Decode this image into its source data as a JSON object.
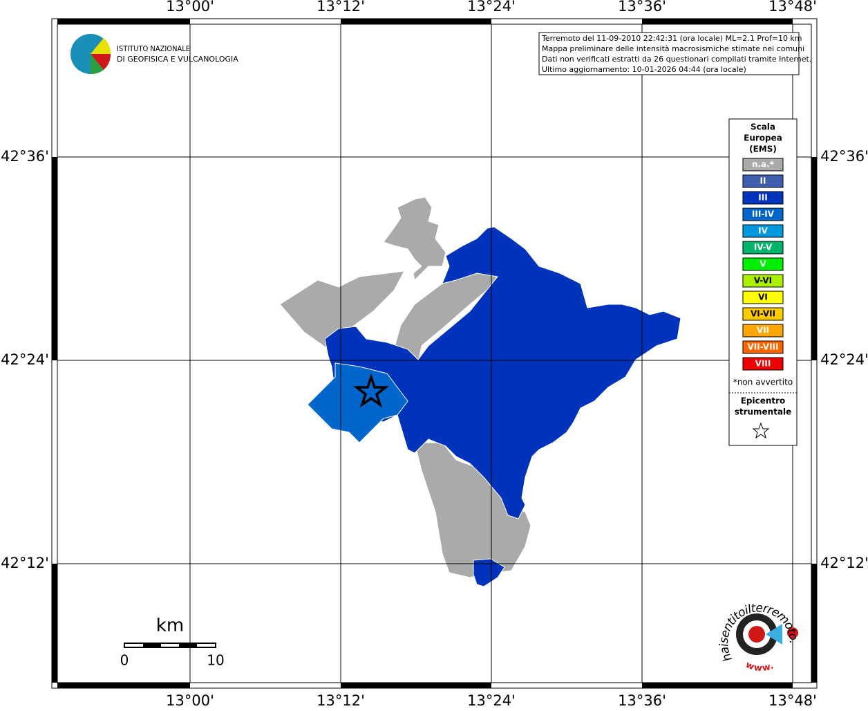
{
  "map": {
    "longitude_labels": [
      "13°00'",
      "13°12'",
      "13°24'",
      "13°36'",
      "13°48'"
    ],
    "latitude_labels": [
      "42°36'",
      "42°24'",
      "42°12'"
    ]
  },
  "info_box": {
    "lines": [
      "Terremoto del 11-09-2010 22:42:31 (ora locale) ML=2.1 Prof=10 km",
      "Mappa preliminare delle intensità macrosismiche stimate nei comuni",
      "Dati non verificati estratti da 26 questionari compilati tramite Internet.",
      "Ultimo aggiornamento: 10-01-2026 04:44 (ora locale)"
    ]
  },
  "logo": {
    "lines": [
      "ISTITUTO NAZIONALE",
      "DI GEOFISICA E VULCANOLOGIA"
    ]
  },
  "legend": {
    "title_lines": [
      "Scala",
      "Europea",
      "(EMS)"
    ],
    "entries": [
      {
        "label": "n.a.*",
        "color": "#aaaaaa"
      },
      {
        "label": "II",
        "color": "#3f5fae"
      },
      {
        "label": "III",
        "color": "#0033bb"
      },
      {
        "label": "III-IV",
        "color": "#0066cc"
      },
      {
        "label": "IV",
        "color": "#0099dd"
      },
      {
        "label": "IV-V",
        "color": "#00b36b"
      },
      {
        "label": "V",
        "color": "#00ee00"
      },
      {
        "label": "V-VI",
        "color": "#aaee00"
      },
      {
        "label": "VI",
        "color": "#ffff00"
      },
      {
        "label": "VI-VII",
        "color": "#ffcc00"
      },
      {
        "label": "VII",
        "color": "#ffa500"
      },
      {
        "label": "VII-VIII",
        "color": "#ff6600"
      },
      {
        "label": "VIII",
        "color": "#ee0000"
      }
    ],
    "note": "*non avvertito",
    "epicenter_lines": [
      "Epicentro",
      "strumentale"
    ]
  },
  "scale_bar": {
    "unit": "km",
    "labels": [
      "0",
      "10"
    ]
  },
  "badge": {
    "text": "haisentitoilterremoto.it",
    "www": "www."
  }
}
